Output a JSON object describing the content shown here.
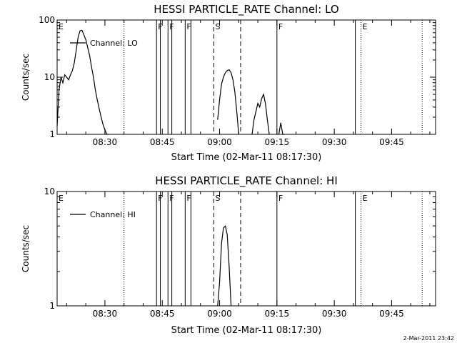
{
  "chart_data": [
    {
      "type": "line",
      "title": "HESSI PARTICLE_RATE Channel: LO",
      "xlabel": "Start Time (02-Mar-11 08:17:30)",
      "ylabel": "Counts/sec",
      "yscale": "log",
      "ylim": [
        1,
        100
      ],
      "xlim": [
        "08:17:30",
        "09:56:30"
      ],
      "x_ticks": [
        "08:30",
        "08:45",
        "09:00",
        "09:15",
        "09:30",
        "09:45"
      ],
      "y_ticks": [
        "1",
        "10",
        "100"
      ],
      "grid": false,
      "legend": {
        "position": "top-left",
        "entries": [
          "Channel: LO"
        ]
      },
      "series": [
        {
          "name": "Channel: LO",
          "color": "#000000",
          "segments": [
            {
              "x": [
                "08:17:30",
                "08:18:00",
                "08:18:30",
                "08:19:00",
                "08:19:30",
                "08:20:00",
                "08:20:30",
                "08:21:00",
                "08:21:30",
                "08:22:00",
                "08:22:30",
                "08:23:00",
                "08:23:30",
                "08:24:00",
                "08:24:30",
                "08:25:00",
                "08:25:30",
                "08:26:00",
                "08:26:30",
                "08:27:00",
                "08:27:30",
                "08:28:00",
                "08:28:30",
                "08:29:00",
                "08:29:30",
                "08:30:00",
                "08:30:30",
                "08:31:00"
              ],
              "y": [
                1.4,
                6,
                10,
                8,
                11,
                10,
                9,
                11,
                13,
                18,
                30,
                50,
                65,
                66,
                55,
                45,
                33,
                24,
                15,
                10,
                6,
                4,
                2.8,
                2,
                1.5,
                1.2,
                1,
                1
              ]
            },
            {
              "x": [
                "08:59:30",
                "09:00:00",
                "09:00:30",
                "09:01:00",
                "09:01:30",
                "09:02:00",
                "09:02:30",
                "09:03:00",
                "09:03:30",
                "09:04:00",
                "09:04:30",
                "09:05:00"
              ],
              "y": [
                1.8,
                4,
                7.5,
                10,
                12,
                13,
                13.5,
                12,
                9,
                5.5,
                2.5,
                1
              ]
            },
            {
              "x": [
                "09:08:30",
                "09:09:00",
                "09:09:30",
                "09:10:00",
                "09:10:30",
                "09:11:00",
                "09:11:30",
                "09:12:00",
                "09:12:30",
                "09:13:00"
              ],
              "y": [
                1,
                1.8,
                2.5,
                3.5,
                3,
                4.2,
                5,
                3.4,
                1.8,
                1
              ]
            },
            {
              "x": [
                "09:15:30",
                "09:16:00",
                "09:16:30",
                "09:17:00"
              ],
              "y": [
                1,
                1.6,
                1,
                1
              ]
            }
          ]
        }
      ],
      "markers": [
        {
          "x": "08:35:00",
          "label": "",
          "style": "dotted"
        },
        {
          "x": "08:43:30",
          "label": "F",
          "style": "solid"
        },
        {
          "x": "08:44:30",
          "label": "",
          "style": "solid"
        },
        {
          "x": "08:46:30",
          "label": "F",
          "style": "solid"
        },
        {
          "x": "08:47:30",
          "label": "",
          "style": "solid"
        },
        {
          "x": "08:51:00",
          "label": "F",
          "style": "solid"
        },
        {
          "x": "08:52:30",
          "label": "",
          "style": "solid"
        },
        {
          "x": "08:58:30",
          "label": "S",
          "style": "dashed"
        },
        {
          "x": "09:05:30",
          "label": "",
          "style": "dashed"
        },
        {
          "x": "09:15:00",
          "label": "F",
          "style": "solid"
        },
        {
          "x": "09:35:30",
          "label": "",
          "style": "solid"
        },
        {
          "x": "09:37:00",
          "label": "E",
          "style": "dotted"
        },
        {
          "x": "09:53:00",
          "label": "",
          "style": "dotted"
        },
        {
          "x": "08:17:30",
          "label": "E",
          "style": "none"
        }
      ]
    },
    {
      "type": "line",
      "title": "HESSI PARTICLE_RATE Channel: HI",
      "xlabel": "Start Time (02-Mar-11 08:17:30)",
      "ylabel": "Counts/sec",
      "yscale": "log",
      "ylim": [
        1,
        10
      ],
      "xlim": [
        "08:17:30",
        "09:56:30"
      ],
      "x_ticks": [
        "08:30",
        "08:45",
        "09:00",
        "09:15",
        "09:30",
        "09:45"
      ],
      "y_ticks": [
        "1",
        "10"
      ],
      "grid": false,
      "legend": {
        "position": "top-left",
        "entries": [
          "Channel: HI"
        ]
      },
      "series": [
        {
          "name": "Channel: HI",
          "color": "#000000",
          "segments": [
            {
              "x": [
                "08:59:30",
                "09:00:00",
                "09:00:30",
                "09:01:00",
                "09:01:30",
                "09:02:00",
                "09:02:30",
                "09:03:00"
              ],
              "y": [
                1,
                1.6,
                3.5,
                4.8,
                5,
                4.2,
                2.2,
                1
              ]
            }
          ]
        }
      ],
      "markers": [
        {
          "x": "08:35:00",
          "label": "",
          "style": "dotted"
        },
        {
          "x": "08:43:30",
          "label": "F",
          "style": "solid"
        },
        {
          "x": "08:44:30",
          "label": "",
          "style": "solid"
        },
        {
          "x": "08:46:30",
          "label": "F",
          "style": "solid"
        },
        {
          "x": "08:47:30",
          "label": "",
          "style": "solid"
        },
        {
          "x": "08:51:00",
          "label": "F",
          "style": "solid"
        },
        {
          "x": "08:52:30",
          "label": "",
          "style": "solid"
        },
        {
          "x": "08:58:30",
          "label": "S",
          "style": "dashed"
        },
        {
          "x": "09:05:30",
          "label": "",
          "style": "dashed"
        },
        {
          "x": "09:15:00",
          "label": "F",
          "style": "solid"
        },
        {
          "x": "09:35:30",
          "label": "",
          "style": "solid"
        },
        {
          "x": "09:37:00",
          "label": "E",
          "style": "dotted"
        },
        {
          "x": "09:53:00",
          "label": "",
          "style": "dotted"
        },
        {
          "x": "08:17:30",
          "label": "E",
          "style": "none"
        }
      ]
    }
  ],
  "footer": {
    "timestamp": "2-Mar-2011 23:42"
  }
}
